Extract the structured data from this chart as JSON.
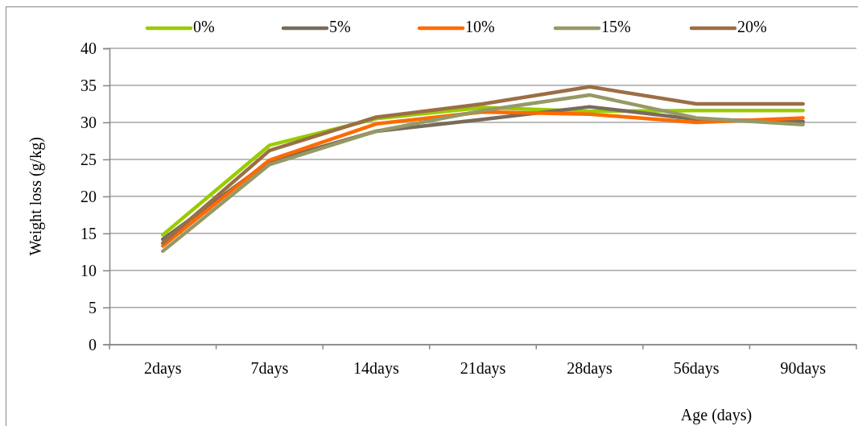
{
  "chart_data": {
    "type": "line",
    "xlabel": "Age (days)",
    "ylabel": "Weight loss (g/kg)",
    "categories": [
      "2days",
      "7days",
      "14days",
      "21days",
      "28days",
      "56days",
      "90days"
    ],
    "series": [
      {
        "name": "0%",
        "color": "#99cc00",
        "values": [
          14.8,
          26.9,
          30.5,
          32.0,
          31.5,
          31.6,
          31.6
        ]
      },
      {
        "name": "5%",
        "color": "#786b5b",
        "values": [
          14.2,
          24.7,
          28.8,
          30.4,
          32.1,
          30.4,
          30.1
        ]
      },
      {
        "name": "10%",
        "color": "#ff6a00",
        "values": [
          13.3,
          24.9,
          29.8,
          31.4,
          31.1,
          30.0,
          30.6
        ]
      },
      {
        "name": "15%",
        "color": "#969966",
        "values": [
          12.6,
          24.3,
          28.8,
          31.6,
          33.7,
          30.6,
          29.7
        ]
      },
      {
        "name": "20%",
        "color": "#9b6e45",
        "values": [
          13.7,
          26.2,
          30.7,
          32.5,
          34.8,
          32.5,
          32.5
        ]
      }
    ],
    "ylim": [
      0,
      40
    ],
    "yticks": [
      0,
      5,
      10,
      15,
      20,
      25,
      30,
      35,
      40
    ],
    "grid": "y",
    "legend": "top"
  }
}
